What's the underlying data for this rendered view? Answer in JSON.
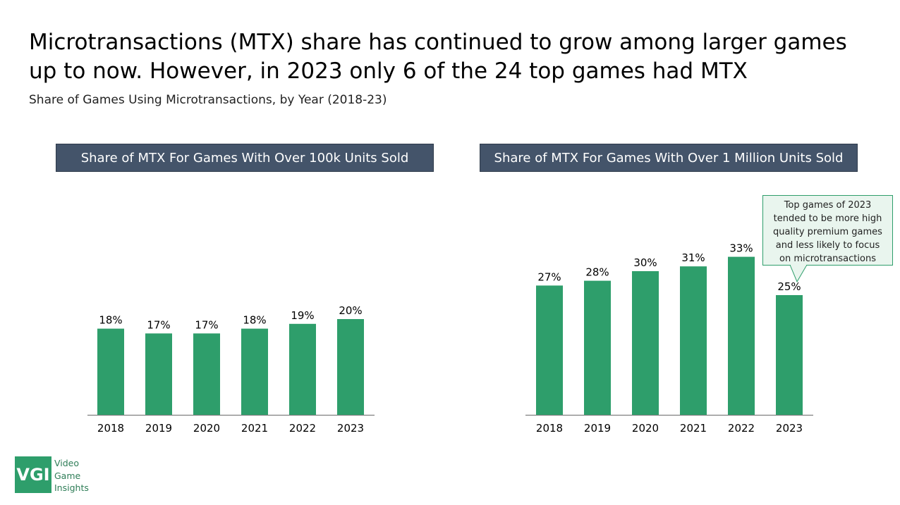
{
  "page": {
    "title": "Microtransactions (MTX) share has continued to grow among larger games up to now. However, in 2023 only 6 of the 24 top games had MTX",
    "subtitle": "Share of Games Using Microtransactions, by Year (2018-23)"
  },
  "callout": {
    "lines": [
      "Top games of 2023",
      "tended to be more high",
      "quality premium games",
      "and less likely to focus",
      "on microtransactions"
    ]
  },
  "logo": {
    "mark": "VGI",
    "lines": [
      "Video",
      "Game",
      "Insights"
    ]
  },
  "colors": {
    "bar": "#2e9e6b",
    "header_bg": "#44546a",
    "callout_bg": "#e9f5ee"
  },
  "chart_data": [
    {
      "type": "bar",
      "title": "Share of MTX For Games With Over 100k Units Sold",
      "categories": [
        "2018",
        "2019",
        "2020",
        "2021",
        "2022",
        "2023"
      ],
      "values": [
        18,
        17,
        17,
        18,
        19,
        20
      ],
      "value_labels": [
        "18%",
        "17%",
        "17%",
        "18%",
        "19%",
        "20%"
      ],
      "ylim": [
        0,
        50
      ],
      "grid": false,
      "legend": "none"
    },
    {
      "type": "bar",
      "title": "Share of MTX For Games With Over 1 Million Units Sold",
      "categories": [
        "2018",
        "2019",
        "2020",
        "2021",
        "2022",
        "2023"
      ],
      "values": [
        27,
        28,
        30,
        31,
        33,
        25
      ],
      "value_labels": [
        "27%",
        "28%",
        "30%",
        "31%",
        "33%",
        "25%"
      ],
      "ylim": [
        0,
        50
      ],
      "grid": false,
      "legend": "none"
    }
  ]
}
